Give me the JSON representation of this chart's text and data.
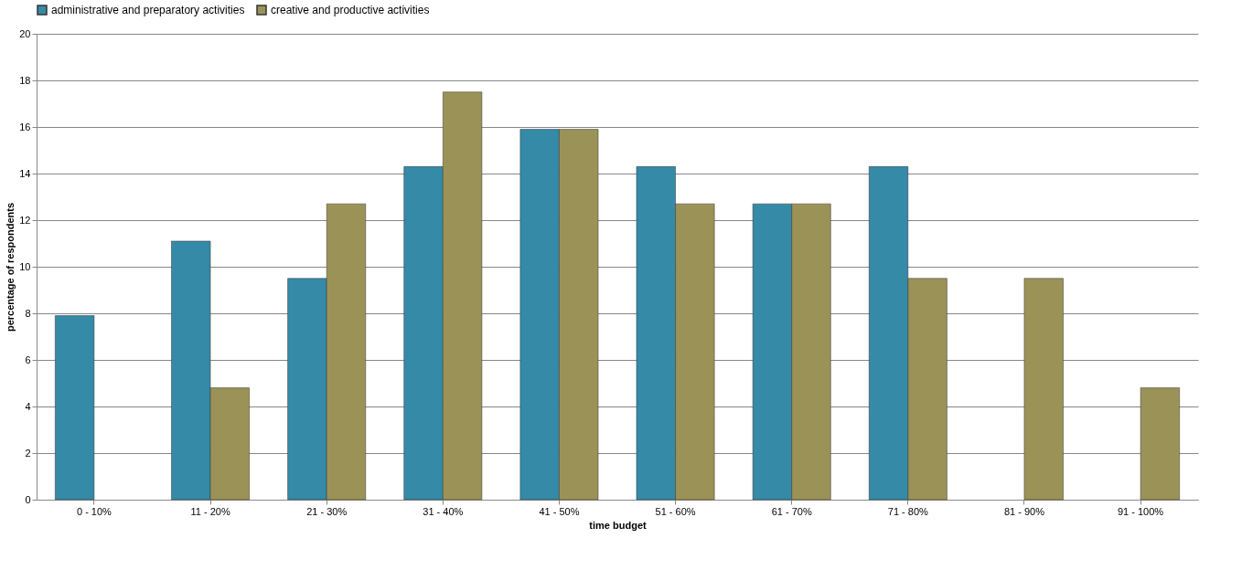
{
  "chart_data": {
    "type": "bar",
    "xlabel": "time budget",
    "ylabel": "percentage of respondents",
    "categories": [
      "0 - 10%",
      "11 - 20%",
      "21 - 30%",
      "31 - 40%",
      "41 - 50%",
      "51 - 60%",
      "61 - 70%",
      "71 - 80%",
      "81 - 90%",
      "91 - 100%"
    ],
    "series": [
      {
        "name": "administrative and preparatory activities",
        "color": "#348aa7",
        "values": [
          7.9,
          11.1,
          9.5,
          14.3,
          15.9,
          14.3,
          12.7,
          14.3,
          null,
          null
        ]
      },
      {
        "name": "creative and productive activities",
        "color": "#9b9257",
        "values": [
          null,
          4.8,
          12.7,
          17.5,
          15.9,
          12.7,
          12.7,
          9.5,
          9.5,
          4.8
        ]
      }
    ],
    "ylim": [
      0,
      20
    ],
    "yticks": [
      0,
      2,
      4,
      6,
      8,
      10,
      12,
      14,
      16,
      18,
      20
    ],
    "grid": "y",
    "legend": "top"
  }
}
